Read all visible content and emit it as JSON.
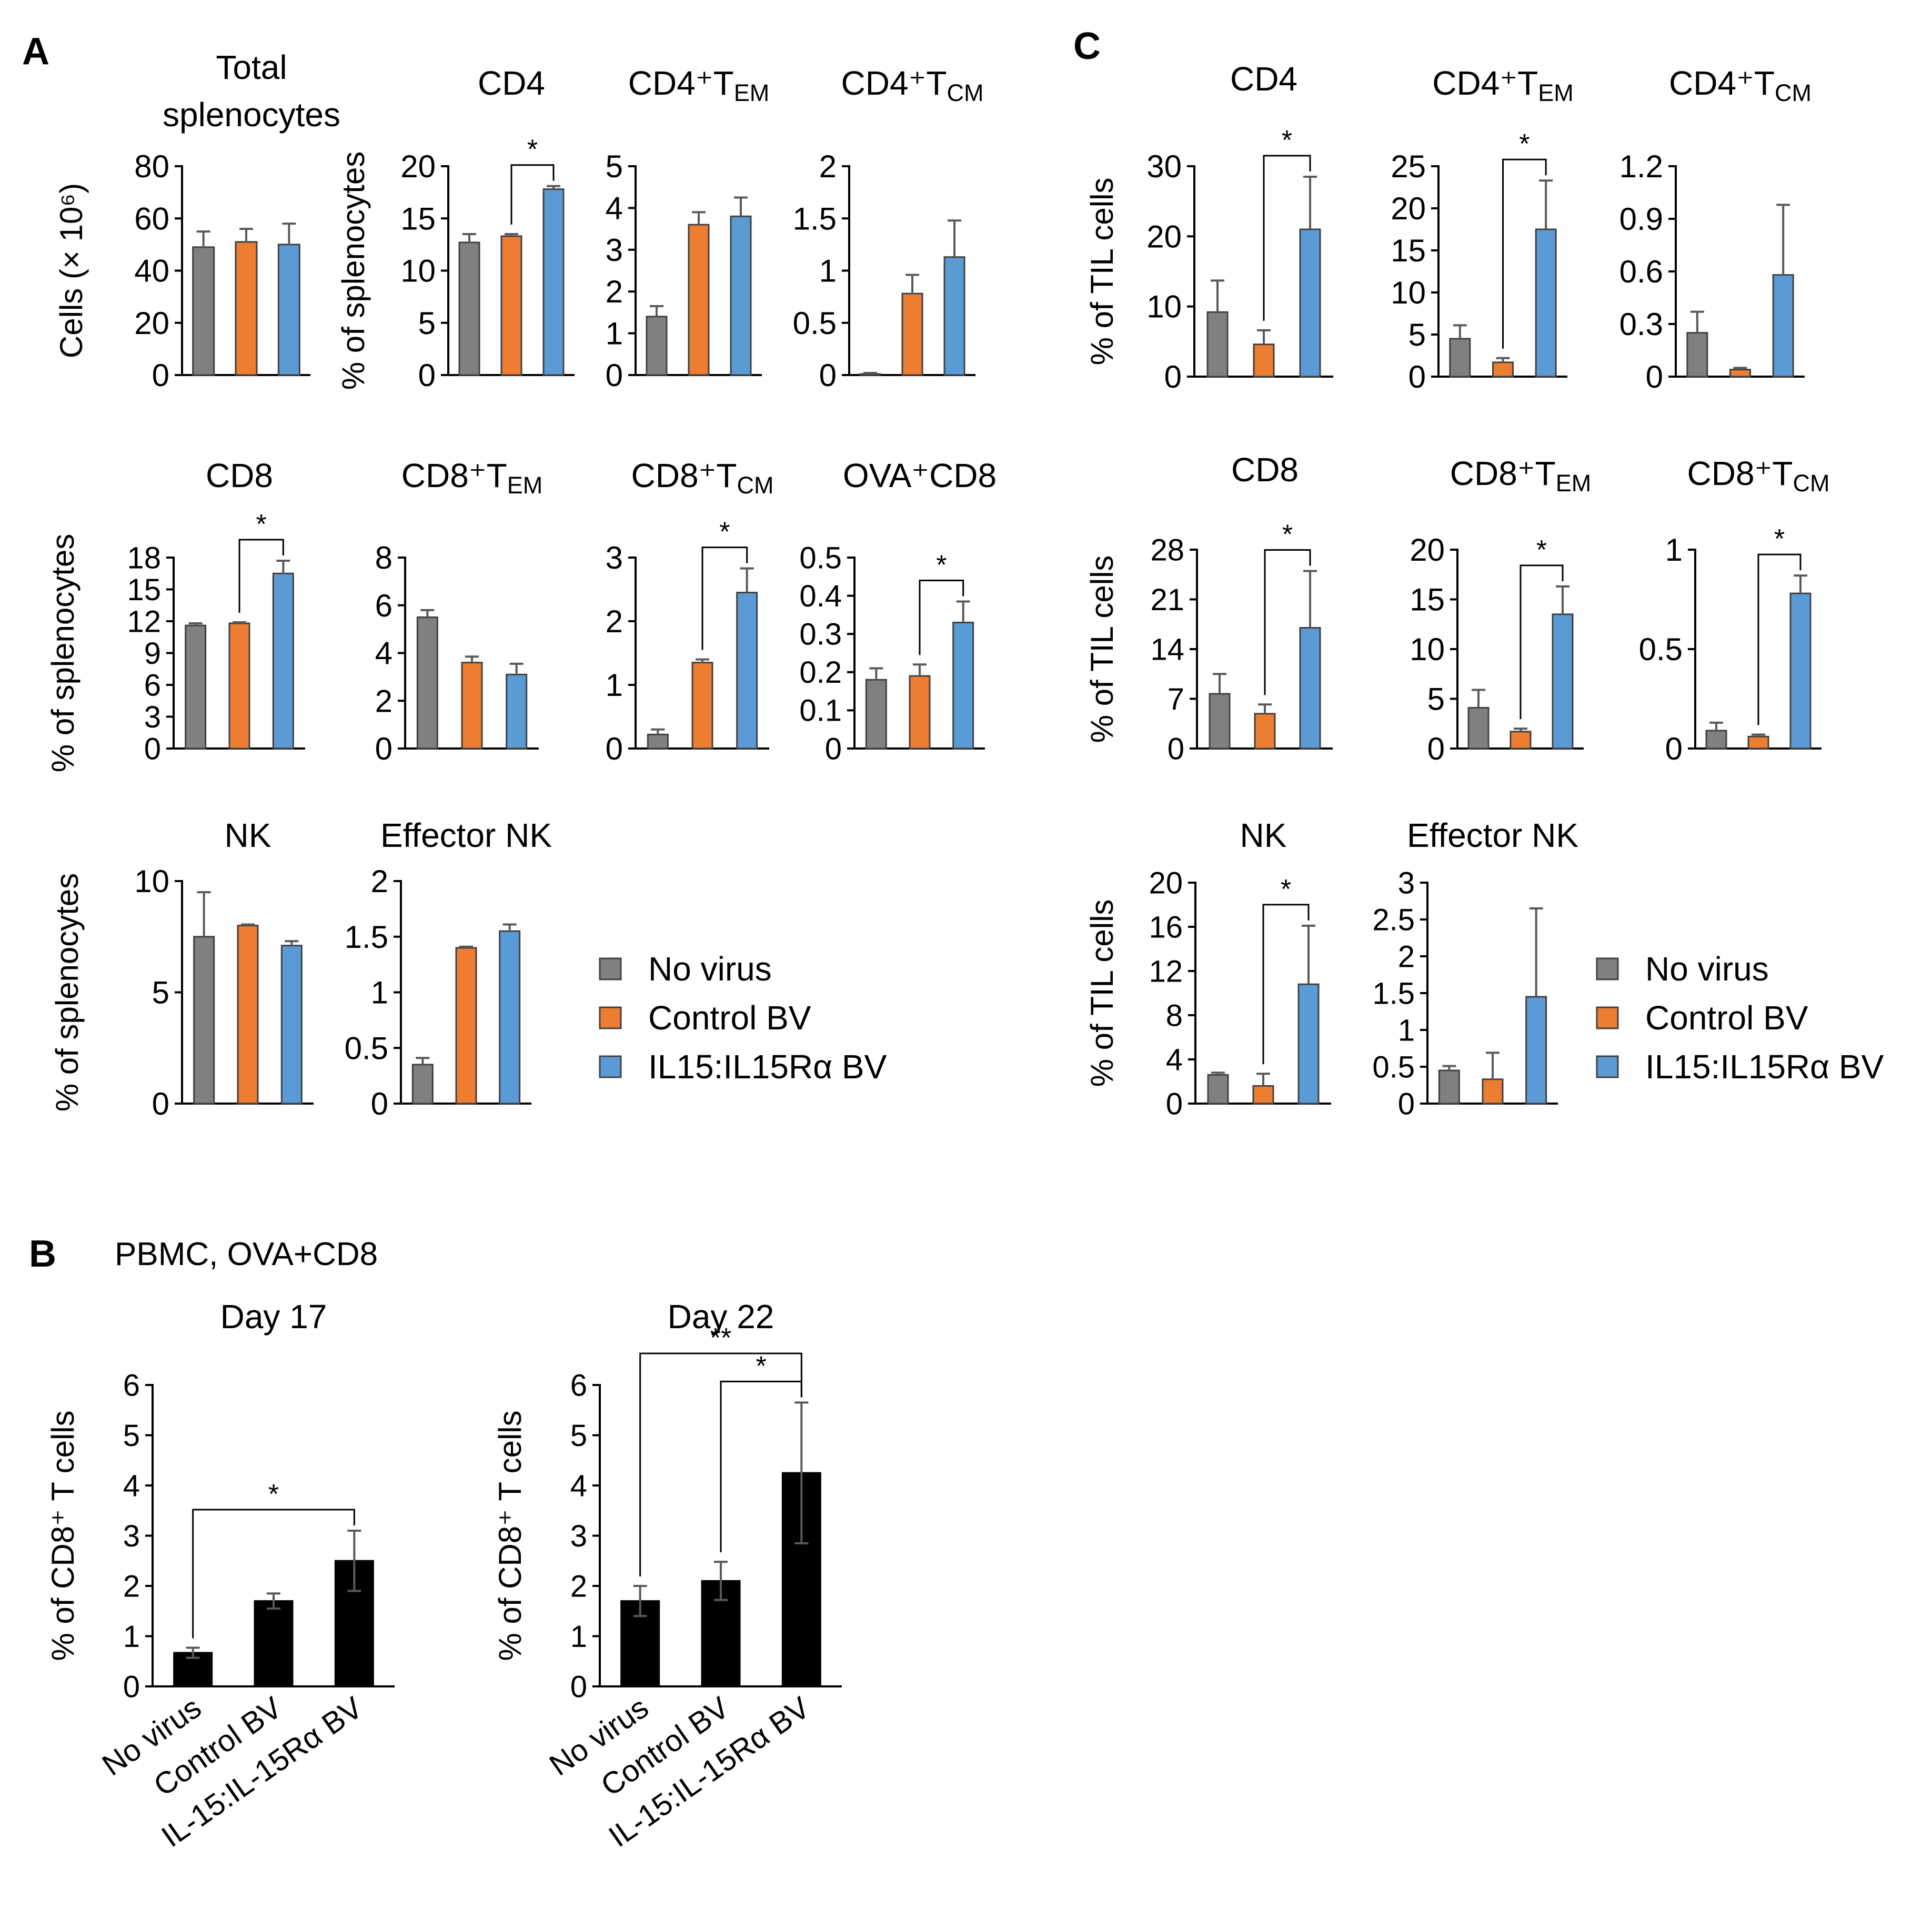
{
  "colors": {
    "no_virus": "#808080",
    "control_bv": "#ED7D31",
    "il15_bv": "#5B9BD5",
    "pbmc": "#000000",
    "axis": "#000000",
    "error": "#595959",
    "bar_edge": "#404040"
  },
  "panel_labels": {
    "a": "A",
    "b": "B",
    "c": "C"
  },
  "panel_b_title": "PBMC, OVA+CD8",
  "legend_a": [
    "No virus",
    "Control BV",
    "IL15:IL15Rα BV"
  ],
  "legend_c": [
    "No virus",
    "Control BV",
    "IL15:IL15Rα BV"
  ],
  "chart_data": [
    {
      "id": "a-total",
      "panel": "A",
      "type": "bar",
      "title": "Total splenocytes",
      "ylabel": "Cells (× 10⁶)",
      "ylim": [
        0,
        80
      ],
      "yticks": [
        0,
        20,
        40,
        60,
        80
      ],
      "categories": [
        "No virus",
        "Control BV",
        "IL15:IL15Rα BV"
      ],
      "values": [
        49,
        51,
        50
      ],
      "errors": [
        6,
        5,
        8
      ],
      "sig": []
    },
    {
      "id": "a-cd4",
      "panel": "A",
      "type": "bar",
      "title": "CD4",
      "ylabel": "% of splenocytes",
      "ylim": [
        0,
        20
      ],
      "yticks": [
        0,
        5,
        10,
        15,
        20
      ],
      "categories": [
        "No virus",
        "Control BV",
        "IL15:IL15Rα BV"
      ],
      "values": [
        12.7,
        13.3,
        17.8
      ],
      "errors": [
        0.8,
        0.2,
        0.3
      ],
      "sig": [
        {
          "from": 1,
          "to": 2,
          "label": "*"
        }
      ]
    },
    {
      "id": "a-cd4tem",
      "panel": "A",
      "type": "bar",
      "title": "CD4⁺TEM",
      "ylabel": "",
      "ylim": [
        0,
        5
      ],
      "yticks": [
        0,
        1,
        2,
        3,
        4,
        5
      ],
      "categories": [
        "No virus",
        "Control BV",
        "IL15:IL15Rα BV"
      ],
      "values": [
        1.4,
        3.6,
        3.8
      ],
      "errors": [
        0.25,
        0.3,
        0.45
      ],
      "sig": []
    },
    {
      "id": "a-cd4tcm",
      "panel": "A",
      "type": "bar",
      "title": "CD4⁺TCM",
      "ylabel": "",
      "ylim": [
        0,
        2
      ],
      "yticks": [
        0,
        0.5,
        1,
        1.5,
        2
      ],
      "categories": [
        "No virus",
        "Control BV",
        "IL15:IL15Rα BV"
      ],
      "values": [
        0.01,
        0.78,
        1.13
      ],
      "errors": [
        0.01,
        0.18,
        0.35
      ],
      "sig": []
    },
    {
      "id": "a-cd8",
      "panel": "A",
      "type": "bar",
      "title": "CD8",
      "ylabel": "% of splenocytes",
      "ylim": [
        0,
        18
      ],
      "yticks": [
        0,
        3,
        6,
        9,
        12,
        15,
        18
      ],
      "categories": [
        "No virus",
        "Control BV",
        "IL15:IL15Rα BV"
      ],
      "values": [
        11.6,
        11.8,
        16.5
      ],
      "errors": [
        0.2,
        0.1,
        1.2
      ],
      "sig": [
        {
          "from": 1,
          "to": 2,
          "label": "*"
        }
      ]
    },
    {
      "id": "a-cd8tem",
      "panel": "A",
      "type": "bar",
      "title": "CD8⁺TEM",
      "ylabel": "",
      "ylim": [
        0,
        8
      ],
      "yticks": [
        0,
        2,
        4,
        6,
        8
      ],
      "categories": [
        "No virus",
        "Control BV",
        "IL15:IL15Rα BV"
      ],
      "values": [
        5.5,
        3.6,
        3.1
      ],
      "errors": [
        0.3,
        0.25,
        0.45
      ],
      "sig": []
    },
    {
      "id": "a-cd8tcm",
      "panel": "A",
      "type": "bar",
      "title": "CD8⁺TCM",
      "ylabel": "",
      "ylim": [
        0,
        3
      ],
      "yticks": [
        0,
        1,
        2,
        3
      ],
      "categories": [
        "No virus",
        "Control BV",
        "IL15:IL15Rα BV"
      ],
      "values": [
        0.22,
        1.35,
        2.45
      ],
      "errors": [
        0.08,
        0.05,
        0.38
      ],
      "sig": [
        {
          "from": 1,
          "to": 2,
          "label": "*"
        }
      ]
    },
    {
      "id": "a-ovacd8",
      "panel": "A",
      "type": "bar",
      "title": "OVA⁺CD8",
      "ylabel": "",
      "ylim": [
        0,
        0.5
      ],
      "yticks": [
        0,
        0.1,
        0.2,
        0.3,
        0.4,
        0.5
      ],
      "categories": [
        "No virus",
        "Control BV",
        "IL15:IL15Rα BV"
      ],
      "values": [
        0.18,
        0.19,
        0.33
      ],
      "errors": [
        0.03,
        0.03,
        0.055
      ],
      "sig": [
        {
          "from": 1,
          "to": 2,
          "label": "*"
        }
      ]
    },
    {
      "id": "a-nk",
      "panel": "A",
      "type": "bar",
      "title": "NK",
      "ylabel": "% of splenocytes",
      "ylim": [
        0,
        10
      ],
      "yticks": [
        0,
        5,
        10
      ],
      "categories": [
        "No virus",
        "Control BV",
        "IL15:IL15Rα BV"
      ],
      "values": [
        7.5,
        8.0,
        7.1
      ],
      "errors": [
        2.0,
        0.05,
        0.2
      ],
      "sig": []
    },
    {
      "id": "a-effnk",
      "panel": "A",
      "type": "bar",
      "title": "Effector NK",
      "ylabel": "",
      "ylim": [
        0,
        2
      ],
      "yticks": [
        0,
        0.5,
        1,
        1.5,
        2
      ],
      "categories": [
        "No virus",
        "Control BV",
        "IL15:IL15Rα BV"
      ],
      "values": [
        0.35,
        1.4,
        1.55
      ],
      "errors": [
        0.06,
        0.01,
        0.06
      ],
      "sig": []
    },
    {
      "id": "b-d17",
      "panel": "B",
      "type": "bar",
      "title": "Day 17",
      "ylabel": "% of CD8⁺ T cells",
      "ylim": [
        0,
        6
      ],
      "yticks": [
        0,
        1,
        2,
        3,
        4,
        5,
        6
      ],
      "categories": [
        "No virus",
        "Control BV",
        "IL-15:IL-15Rα BV"
      ],
      "values": [
        0.67,
        1.7,
        2.5
      ],
      "errors": [
        0.1,
        0.15,
        0.6
      ],
      "sig": [
        {
          "from": 0,
          "to": 2,
          "label": "*"
        }
      ]
    },
    {
      "id": "b-d22",
      "panel": "B",
      "type": "bar",
      "title": "Day 22",
      "ylabel": "% of CD8⁺ T cells",
      "ylim": [
        0,
        6
      ],
      "yticks": [
        0,
        1,
        2,
        3,
        4,
        5,
        6
      ],
      "categories": [
        "No virus",
        "Control BV",
        "IL-15:IL-15Rα BV"
      ],
      "values": [
        1.7,
        2.1,
        4.25
      ],
      "errors": [
        0.3,
        0.38,
        1.4
      ],
      "sig": [
        {
          "from": 0,
          "to": 2,
          "label": "**"
        },
        {
          "from": 1,
          "to": 2,
          "label": "*"
        }
      ]
    },
    {
      "id": "c-cd4",
      "panel": "C",
      "type": "bar",
      "title": "CD4",
      "ylabel": "% of TIL cells",
      "ylim": [
        0,
        30
      ],
      "yticks": [
        0,
        10,
        20,
        30
      ],
      "categories": [
        "No virus",
        "Control BV",
        "IL15:IL15Rα BV"
      ],
      "values": [
        9.2,
        4.6,
        21.0
      ],
      "errors": [
        4.5,
        2.0,
        7.5
      ],
      "sig": [
        {
          "from": 1,
          "to": 2,
          "label": "*"
        }
      ]
    },
    {
      "id": "c-cd4tem",
      "panel": "C",
      "type": "bar",
      "title": "CD4⁺TEM",
      "ylabel": "",
      "ylim": [
        0,
        25
      ],
      "yticks": [
        0,
        5,
        10,
        15,
        20,
        25
      ],
      "categories": [
        "No virus",
        "Control BV",
        "IL15:IL15Rα BV"
      ],
      "values": [
        4.5,
        1.7,
        17.5
      ],
      "errors": [
        1.6,
        0.5,
        5.8
      ],
      "sig": [
        {
          "from": 1,
          "to": 2,
          "label": "*"
        }
      ]
    },
    {
      "id": "c-cd4tcm",
      "panel": "C",
      "type": "bar",
      "title": "CD4⁺TCM",
      "ylabel": "",
      "ylim": [
        0,
        1.2
      ],
      "yticks": [
        0,
        0.3,
        0.6,
        0.9,
        1.2
      ],
      "categories": [
        "No virus",
        "Control BV",
        "IL15:IL15Rα BV"
      ],
      "values": [
        0.25,
        0.04,
        0.58
      ],
      "errors": [
        0.12,
        0.01,
        0.4
      ],
      "sig": []
    },
    {
      "id": "c-cd8",
      "panel": "C",
      "type": "bar",
      "title": "CD8",
      "ylabel": "% of TIL cells",
      "ylim": [
        0,
        28
      ],
      "yticks": [
        0,
        7,
        14,
        21,
        28
      ],
      "categories": [
        "No virus",
        "Control BV",
        "IL15:IL15Rα BV"
      ],
      "values": [
        7.7,
        4.9,
        17.0
      ],
      "errors": [
        2.8,
        1.3,
        8.0
      ],
      "sig": [
        {
          "from": 1,
          "to": 2,
          "label": "*"
        }
      ]
    },
    {
      "id": "c-cd8tem",
      "panel": "C",
      "type": "bar",
      "title": "CD8⁺TEM",
      "ylabel": "",
      "ylim": [
        0,
        20
      ],
      "yticks": [
        0,
        5,
        10,
        15,
        20
      ],
      "categories": [
        "No virus",
        "Control BV",
        "IL15:IL15Rα BV"
      ],
      "values": [
        4.1,
        1.7,
        13.5
      ],
      "errors": [
        1.8,
        0.3,
        2.8
      ],
      "sig": [
        {
          "from": 1,
          "to": 2,
          "label": "*"
        }
      ]
    },
    {
      "id": "c-cd8tcm",
      "panel": "C",
      "type": "bar",
      "title": "CD8⁺TCM",
      "ylabel": "",
      "ylim": [
        0,
        1
      ],
      "yticks": [
        0,
        0.5,
        1
      ],
      "categories": [
        "No virus",
        "Control BV",
        "IL15:IL15Rα BV"
      ],
      "values": [
        0.09,
        0.06,
        0.78
      ],
      "errors": [
        0.04,
        0.01,
        0.09
      ],
      "sig": [
        {
          "from": 1,
          "to": 2,
          "label": "*"
        }
      ]
    },
    {
      "id": "c-nk",
      "panel": "C",
      "type": "bar",
      "title": "NK",
      "ylabel": "% of TIL cells",
      "ylim": [
        0,
        20
      ],
      "yticks": [
        0,
        4,
        8,
        12,
        16,
        20
      ],
      "categories": [
        "No virus",
        "Control BV",
        "IL15:IL15Rα BV"
      ],
      "values": [
        2.6,
        1.6,
        10.8
      ],
      "errors": [
        0.2,
        1.1,
        5.3
      ],
      "sig": [
        {
          "from": 1,
          "to": 2,
          "label": "*"
        }
      ]
    },
    {
      "id": "c-effnk",
      "panel": "C",
      "type": "bar",
      "title": "Effector NK",
      "ylabel": "",
      "ylim": [
        0,
        3
      ],
      "yticks": [
        0,
        0.5,
        1,
        1.5,
        2,
        2.5,
        3
      ],
      "categories": [
        "No virus",
        "Control BV",
        "IL15:IL15Rα BV"
      ],
      "values": [
        0.45,
        0.33,
        1.45
      ],
      "errors": [
        0.06,
        0.36,
        1.2
      ],
      "sig": []
    }
  ]
}
